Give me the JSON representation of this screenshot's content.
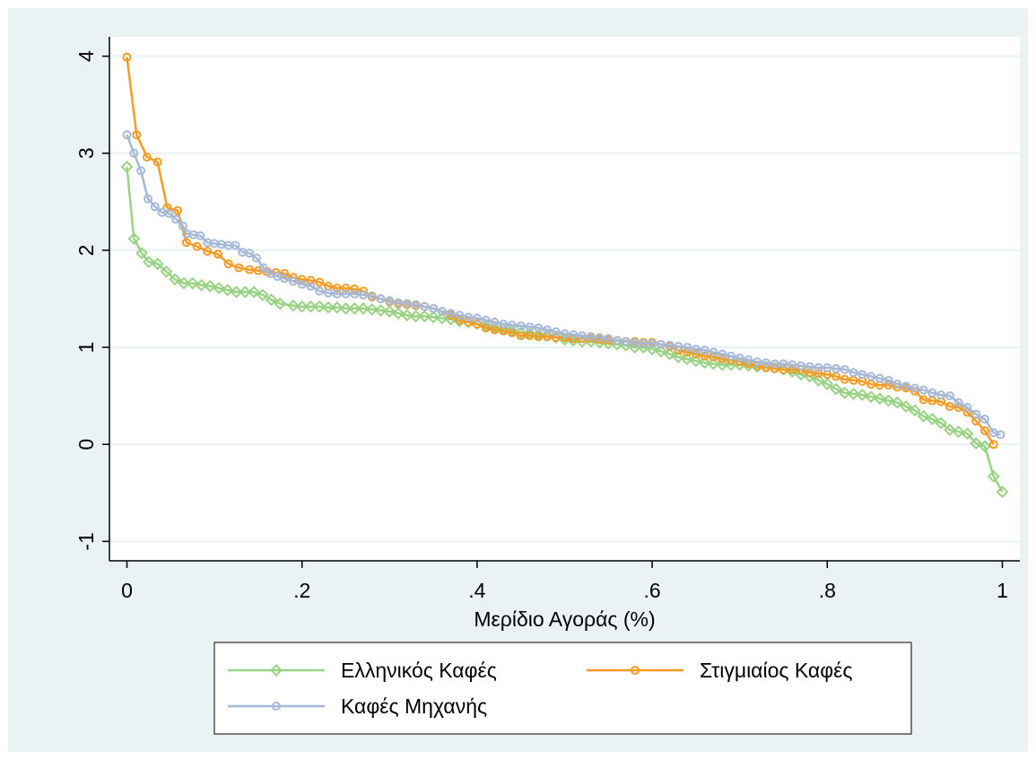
{
  "chart_data": {
    "type": "line",
    "title": "",
    "xlabel": "Μερίδιο Αγοράς (%)",
    "ylabel": "",
    "xlim": [
      -0.02,
      1.02
    ],
    "ylim": [
      -1.2,
      4.2
    ],
    "x_ticks": [
      0,
      0.2,
      0.4,
      0.6,
      0.8,
      1
    ],
    "x_tick_labels": [
      "0",
      ".2",
      ".4",
      ".6",
      ".8",
      "1"
    ],
    "y_ticks": [
      -1,
      0,
      1,
      2,
      3,
      4
    ],
    "y_tick_labels": [
      "-1",
      "0",
      "1",
      "2",
      "3",
      "4"
    ],
    "grid": true,
    "legend_position": "bottom",
    "series": [
      {
        "name": "Ελληνικός Καφές",
        "color": "#98d283",
        "marker": "diamond",
        "points": [
          [
            0,
            2.86
          ],
          [
            0.008,
            2.12
          ],
          [
            0.017,
            1.97
          ],
          [
            0.025,
            1.88
          ],
          [
            0.035,
            1.86
          ],
          [
            0.045,
            1.78
          ],
          [
            0.055,
            1.7
          ],
          [
            0.065,
            1.66
          ],
          [
            0.075,
            1.66
          ],
          [
            0.085,
            1.64
          ],
          [
            0.095,
            1.63
          ],
          [
            0.105,
            1.61
          ],
          [
            0.115,
            1.59
          ],
          [
            0.125,
            1.57
          ],
          [
            0.135,
            1.57
          ],
          [
            0.145,
            1.57
          ],
          [
            0.155,
            1.54
          ],
          [
            0.165,
            1.49
          ],
          [
            0.175,
            1.45
          ],
          [
            0.19,
            1.43
          ],
          [
            0.2,
            1.42
          ],
          [
            0.21,
            1.42
          ],
          [
            0.22,
            1.42
          ],
          [
            0.23,
            1.41
          ],
          [
            0.24,
            1.41
          ],
          [
            0.25,
            1.4
          ],
          [
            0.26,
            1.4
          ],
          [
            0.27,
            1.4
          ],
          [
            0.28,
            1.39
          ],
          [
            0.29,
            1.38
          ],
          [
            0.3,
            1.37
          ],
          [
            0.31,
            1.35
          ],
          [
            0.32,
            1.33
          ],
          [
            0.33,
            1.32
          ],
          [
            0.34,
            1.32
          ],
          [
            0.35,
            1.31
          ],
          [
            0.36,
            1.3
          ],
          [
            0.37,
            1.29
          ],
          [
            0.38,
            1.27
          ],
          [
            0.39,
            1.26
          ],
          [
            0.4,
            1.24
          ],
          [
            0.41,
            1.22
          ],
          [
            0.42,
            1.2
          ],
          [
            0.43,
            1.19
          ],
          [
            0.44,
            1.17
          ],
          [
            0.45,
            1.15
          ],
          [
            0.46,
            1.14
          ],
          [
            0.47,
            1.13
          ],
          [
            0.48,
            1.12
          ],
          [
            0.49,
            1.1
          ],
          [
            0.5,
            1.08
          ],
          [
            0.51,
            1.07
          ],
          [
            0.52,
            1.06
          ],
          [
            0.53,
            1.06
          ],
          [
            0.54,
            1.05
          ],
          [
            0.55,
            1.04
          ],
          [
            0.56,
            1.03
          ],
          [
            0.57,
            1.02
          ],
          [
            0.58,
            1.0
          ],
          [
            0.59,
            1.0
          ],
          [
            0.6,
            0.98
          ],
          [
            0.61,
            0.96
          ],
          [
            0.62,
            0.93
          ],
          [
            0.63,
            0.9
          ],
          [
            0.64,
            0.88
          ],
          [
            0.65,
            0.86
          ],
          [
            0.66,
            0.84
          ],
          [
            0.67,
            0.83
          ],
          [
            0.68,
            0.82
          ],
          [
            0.69,
            0.82
          ],
          [
            0.7,
            0.82
          ],
          [
            0.71,
            0.81
          ],
          [
            0.72,
            0.8
          ],
          [
            0.73,
            0.8
          ],
          [
            0.74,
            0.79
          ],
          [
            0.75,
            0.77
          ],
          [
            0.76,
            0.75
          ],
          [
            0.77,
            0.72
          ],
          [
            0.78,
            0.7
          ],
          [
            0.79,
            0.66
          ],
          [
            0.8,
            0.62
          ],
          [
            0.81,
            0.57
          ],
          [
            0.82,
            0.53
          ],
          [
            0.83,
            0.52
          ],
          [
            0.84,
            0.51
          ],
          [
            0.85,
            0.49
          ],
          [
            0.86,
            0.47
          ],
          [
            0.87,
            0.45
          ],
          [
            0.88,
            0.43
          ],
          [
            0.89,
            0.39
          ],
          [
            0.9,
            0.35
          ],
          [
            0.91,
            0.29
          ],
          [
            0.92,
            0.26
          ],
          [
            0.93,
            0.22
          ],
          [
            0.94,
            0.15
          ],
          [
            0.95,
            0.13
          ],
          [
            0.96,
            0.11
          ],
          [
            0.97,
            0.01
          ],
          [
            0.98,
            -0.02
          ],
          [
            0.99,
            -0.33
          ],
          [
            1.0,
            -0.49
          ]
        ]
      },
      {
        "name": "Στιγμιαίος Καφές",
        "color": "#f39c24",
        "marker": "circle",
        "points": [
          [
            0,
            3.99
          ],
          [
            0.011,
            3.19
          ],
          [
            0.023,
            2.96
          ],
          [
            0.035,
            2.91
          ],
          [
            0.046,
            2.44
          ],
          [
            0.058,
            2.41
          ],
          [
            0.068,
            2.08
          ],
          [
            0.08,
            2.04
          ],
          [
            0.092,
            1.99
          ],
          [
            0.104,
            1.96
          ],
          [
            0.116,
            1.86
          ],
          [
            0.128,
            1.82
          ],
          [
            0.14,
            1.8
          ],
          [
            0.15,
            1.79
          ],
          [
            0.16,
            1.78
          ],
          [
            0.17,
            1.77
          ],
          [
            0.18,
            1.76
          ],
          [
            0.19,
            1.72
          ],
          [
            0.2,
            1.7
          ],
          [
            0.21,
            1.69
          ],
          [
            0.22,
            1.67
          ],
          [
            0.23,
            1.63
          ],
          [
            0.24,
            1.61
          ],
          [
            0.25,
            1.61
          ],
          [
            0.26,
            1.6
          ],
          [
            0.27,
            1.58
          ],
          [
            0.28,
            1.52
          ],
          [
            0.29,
            1.5
          ],
          [
            0.3,
            1.47
          ],
          [
            0.31,
            1.45
          ],
          [
            0.32,
            1.44
          ],
          [
            0.33,
            1.43
          ],
          [
            0.34,
            1.42
          ],
          [
            0.35,
            1.4
          ],
          [
            0.36,
            1.37
          ],
          [
            0.37,
            1.33
          ],
          [
            0.38,
            1.28
          ],
          [
            0.39,
            1.26
          ],
          [
            0.4,
            1.24
          ],
          [
            0.41,
            1.2
          ],
          [
            0.42,
            1.18
          ],
          [
            0.43,
            1.17
          ],
          [
            0.44,
            1.15
          ],
          [
            0.45,
            1.12
          ],
          [
            0.46,
            1.12
          ],
          [
            0.47,
            1.11
          ],
          [
            0.48,
            1.11
          ],
          [
            0.49,
            1.1
          ],
          [
            0.5,
            1.1
          ],
          [
            0.51,
            1.09
          ],
          [
            0.52,
            1.09
          ],
          [
            0.53,
            1.09
          ],
          [
            0.54,
            1.08
          ],
          [
            0.55,
            1.07
          ],
          [
            0.56,
            1.07
          ],
          [
            0.57,
            1.06
          ],
          [
            0.58,
            1.06
          ],
          [
            0.59,
            1.05
          ],
          [
            0.6,
            1.05
          ],
          [
            0.61,
            1.03
          ],
          [
            0.62,
            1.01
          ],
          [
            0.63,
            0.97
          ],
          [
            0.64,
            0.95
          ],
          [
            0.65,
            0.93
          ],
          [
            0.66,
            0.91
          ],
          [
            0.67,
            0.9
          ],
          [
            0.68,
            0.88
          ],
          [
            0.69,
            0.87
          ],
          [
            0.7,
            0.85
          ],
          [
            0.71,
            0.83
          ],
          [
            0.72,
            0.81
          ],
          [
            0.73,
            0.79
          ],
          [
            0.74,
            0.78
          ],
          [
            0.75,
            0.77
          ],
          [
            0.76,
            0.77
          ],
          [
            0.77,
            0.77
          ],
          [
            0.78,
            0.74
          ],
          [
            0.79,
            0.73
          ],
          [
            0.8,
            0.72
          ],
          [
            0.81,
            0.7
          ],
          [
            0.82,
            0.67
          ],
          [
            0.83,
            0.66
          ],
          [
            0.84,
            0.65
          ],
          [
            0.85,
            0.62
          ],
          [
            0.86,
            0.61
          ],
          [
            0.87,
            0.61
          ],
          [
            0.88,
            0.59
          ],
          [
            0.89,
            0.58
          ],
          [
            0.9,
            0.55
          ],
          [
            0.91,
            0.46
          ],
          [
            0.92,
            0.45
          ],
          [
            0.93,
            0.44
          ],
          [
            0.94,
            0.39
          ],
          [
            0.95,
            0.38
          ],
          [
            0.96,
            0.33
          ],
          [
            0.97,
            0.24
          ],
          [
            0.98,
            0.14
          ],
          [
            0.99,
            0.0
          ]
        ]
      },
      {
        "name": "Καφές Μηχανής",
        "color": "#a6b8d8",
        "marker": "circle",
        "points": [
          [
            0,
            3.19
          ],
          [
            0.008,
            3.0
          ],
          [
            0.016,
            2.82
          ],
          [
            0.024,
            2.53
          ],
          [
            0.032,
            2.45
          ],
          [
            0.04,
            2.39
          ],
          [
            0.048,
            2.38
          ],
          [
            0.056,
            2.32
          ],
          [
            0.064,
            2.25
          ],
          [
            0.068,
            2.17
          ],
          [
            0.076,
            2.16
          ],
          [
            0.084,
            2.15
          ],
          [
            0.092,
            2.08
          ],
          [
            0.1,
            2.07
          ],
          [
            0.108,
            2.06
          ],
          [
            0.116,
            2.05
          ],
          [
            0.124,
            2.05
          ],
          [
            0.132,
            1.98
          ],
          [
            0.14,
            1.97
          ],
          [
            0.148,
            1.92
          ],
          [
            0.156,
            1.82
          ],
          [
            0.164,
            1.76
          ],
          [
            0.172,
            1.73
          ],
          [
            0.18,
            1.71
          ],
          [
            0.19,
            1.68
          ],
          [
            0.2,
            1.65
          ],
          [
            0.21,
            1.63
          ],
          [
            0.22,
            1.58
          ],
          [
            0.23,
            1.56
          ],
          [
            0.24,
            1.55
          ],
          [
            0.25,
            1.55
          ],
          [
            0.26,
            1.55
          ],
          [
            0.27,
            1.54
          ],
          [
            0.28,
            1.53
          ],
          [
            0.29,
            1.5
          ],
          [
            0.3,
            1.48
          ],
          [
            0.31,
            1.46
          ],
          [
            0.32,
            1.45
          ],
          [
            0.33,
            1.44
          ],
          [
            0.34,
            1.42
          ],
          [
            0.35,
            1.4
          ],
          [
            0.36,
            1.37
          ],
          [
            0.37,
            1.35
          ],
          [
            0.38,
            1.33
          ],
          [
            0.39,
            1.31
          ],
          [
            0.4,
            1.3
          ],
          [
            0.41,
            1.28
          ],
          [
            0.42,
            1.26
          ],
          [
            0.43,
            1.24
          ],
          [
            0.44,
            1.23
          ],
          [
            0.45,
            1.22
          ],
          [
            0.46,
            1.21
          ],
          [
            0.47,
            1.2
          ],
          [
            0.48,
            1.18
          ],
          [
            0.49,
            1.16
          ],
          [
            0.5,
            1.14
          ],
          [
            0.51,
            1.13
          ],
          [
            0.52,
            1.12
          ],
          [
            0.53,
            1.11
          ],
          [
            0.54,
            1.1
          ],
          [
            0.55,
            1.09
          ],
          [
            0.56,
            1.07
          ],
          [
            0.57,
            1.06
          ],
          [
            0.58,
            1.05
          ],
          [
            0.59,
            1.04
          ],
          [
            0.6,
            1.04
          ],
          [
            0.61,
            1.03
          ],
          [
            0.62,
            1.02
          ],
          [
            0.63,
            1.01
          ],
          [
            0.64,
            1.0
          ],
          [
            0.65,
            0.98
          ],
          [
            0.66,
            0.97
          ],
          [
            0.67,
            0.95
          ],
          [
            0.68,
            0.93
          ],
          [
            0.69,
            0.91
          ],
          [
            0.7,
            0.89
          ],
          [
            0.71,
            0.87
          ],
          [
            0.72,
            0.85
          ],
          [
            0.73,
            0.84
          ],
          [
            0.74,
            0.83
          ],
          [
            0.75,
            0.83
          ],
          [
            0.76,
            0.82
          ],
          [
            0.77,
            0.81
          ],
          [
            0.78,
            0.8
          ],
          [
            0.79,
            0.79
          ],
          [
            0.8,
            0.79
          ],
          [
            0.81,
            0.78
          ],
          [
            0.82,
            0.77
          ],
          [
            0.83,
            0.74
          ],
          [
            0.84,
            0.72
          ],
          [
            0.85,
            0.7
          ],
          [
            0.86,
            0.68
          ],
          [
            0.87,
            0.66
          ],
          [
            0.88,
            0.62
          ],
          [
            0.89,
            0.6
          ],
          [
            0.9,
            0.58
          ],
          [
            0.91,
            0.56
          ],
          [
            0.92,
            0.53
          ],
          [
            0.93,
            0.51
          ],
          [
            0.94,
            0.5
          ],
          [
            0.95,
            0.43
          ],
          [
            0.96,
            0.38
          ],
          [
            0.97,
            0.31
          ],
          [
            0.98,
            0.26
          ],
          [
            0.99,
            0.12
          ],
          [
            0.998,
            0.1
          ]
        ]
      }
    ]
  }
}
